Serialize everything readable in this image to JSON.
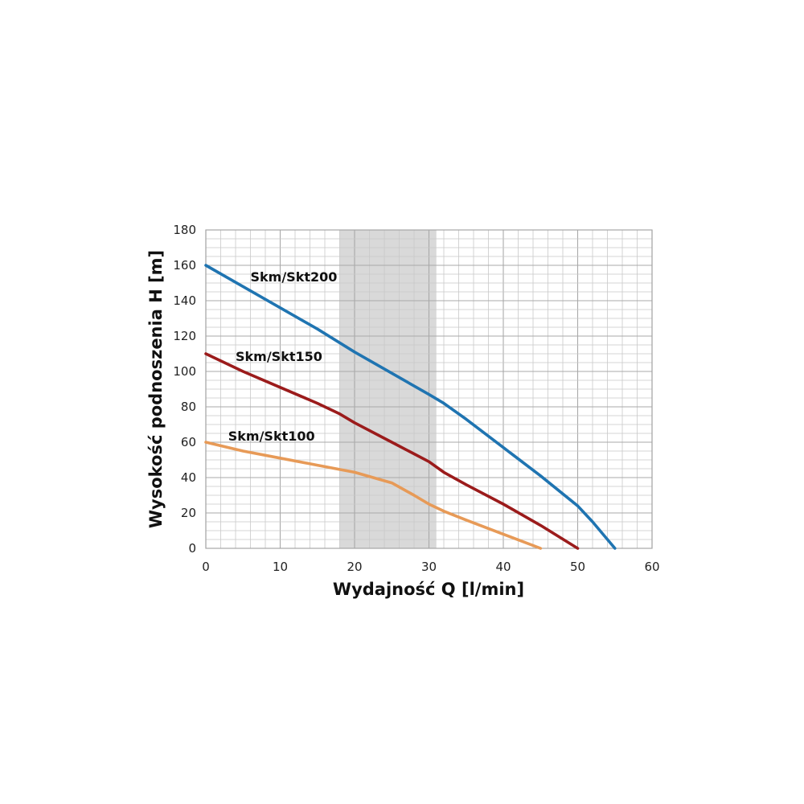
{
  "chart_data": {
    "type": "line",
    "title": "",
    "xlabel": "Wydajność Q [l/min]",
    "ylabel": "Wysokość podnoszenia H [m]",
    "xlim": [
      0,
      60
    ],
    "ylim": [
      0,
      180
    ],
    "x_ticks": [
      0,
      10,
      20,
      30,
      40,
      50,
      60
    ],
    "y_ticks": [
      0,
      20,
      40,
      60,
      80,
      100,
      120,
      140,
      160,
      180
    ],
    "x_minor_step": 2,
    "y_minor_step": 5,
    "grid": true,
    "highlight_band": {
      "x_start": 18,
      "x_end": 31,
      "color": "#d9d9d9"
    },
    "series": [
      {
        "name": "Skm/Skt200",
        "color": "#1f74b1",
        "label_anchor": [
          6,
          151
        ],
        "points": [
          [
            0,
            160
          ],
          [
            5,
            148
          ],
          [
            10,
            136
          ],
          [
            15,
            124
          ],
          [
            20,
            111
          ],
          [
            25,
            99
          ],
          [
            30,
            87
          ],
          [
            32,
            82
          ],
          [
            35,
            73
          ],
          [
            40,
            57
          ],
          [
            45,
            41
          ],
          [
            50,
            24
          ],
          [
            52,
            15
          ],
          [
            55,
            0
          ]
        ]
      },
      {
        "name": "Skm/Skt150",
        "color": "#9b1b1b",
        "label_anchor": [
          4,
          106
        ],
        "points": [
          [
            0,
            110
          ],
          [
            5,
            100
          ],
          [
            10,
            91
          ],
          [
            15,
            82
          ],
          [
            18,
            76
          ],
          [
            20,
            71
          ],
          [
            25,
            60
          ],
          [
            30,
            49
          ],
          [
            32,
            43
          ],
          [
            35,
            36
          ],
          [
            40,
            25
          ],
          [
            45,
            13
          ],
          [
            50,
            0
          ]
        ]
      },
      {
        "name": "Skm/Skt100",
        "color": "#e79a57",
        "label_anchor": [
          3,
          61
        ],
        "points": [
          [
            0,
            60
          ],
          [
            5,
            55
          ],
          [
            10,
            51
          ],
          [
            15,
            47
          ],
          [
            20,
            43
          ],
          [
            25,
            37
          ],
          [
            28,
            30
          ],
          [
            30,
            25
          ],
          [
            32,
            21
          ],
          [
            35,
            16
          ],
          [
            40,
            8
          ],
          [
            45,
            0
          ]
        ]
      }
    ]
  }
}
